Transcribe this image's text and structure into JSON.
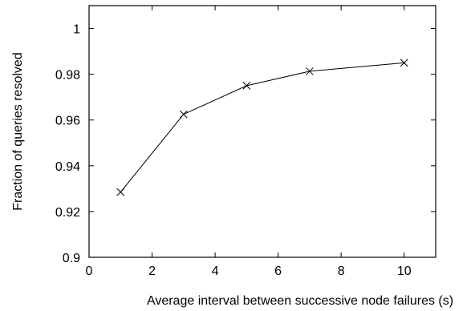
{
  "chart_data": {
    "type": "line",
    "title": "",
    "xlabel": "Average interval between successive node failures (s)",
    "ylabel": "Fraction of queries resolved",
    "xlim": [
      0,
      11
    ],
    "ylim": [
      0.9,
      1.01
    ],
    "xticks": [
      0,
      2,
      4,
      6,
      8,
      10
    ],
    "yticks": [
      0.9,
      0.92,
      0.94,
      0.96,
      0.98,
      1
    ],
    "xtick_labels": [
      "0",
      "2",
      "4",
      "6",
      "8",
      "10"
    ],
    "ytick_labels": [
      "0.9",
      "0.92",
      "0.94",
      "0.96",
      "0.98",
      "1"
    ],
    "grid": false,
    "legend": "none",
    "series": [
      {
        "marker": "x",
        "color": "#000000",
        "x": [
          1,
          3,
          5,
          7,
          10
        ],
        "y": [
          0.9285,
          0.9625,
          0.975,
          0.9813,
          0.985
        ]
      }
    ]
  }
}
